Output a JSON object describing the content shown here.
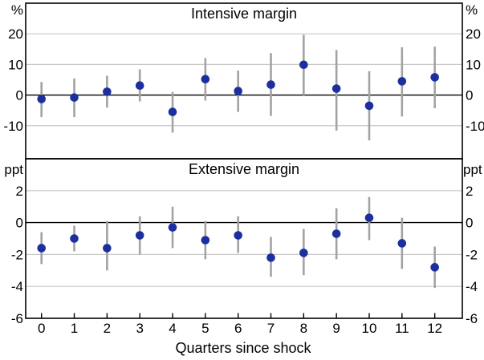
{
  "figure": {
    "xlabel": "Quarters since shock",
    "x_tick_labels": [
      "0",
      "1",
      "2",
      "3",
      "4",
      "5",
      "6",
      "7",
      "8",
      "9",
      "10",
      "11",
      "12"
    ]
  },
  "chart_data": [
    {
      "type": "scatter",
      "title": "Intensive margin",
      "unit_label": "%",
      "x": [
        0,
        1,
        2,
        3,
        4,
        5,
        6,
        7,
        8,
        9,
        10,
        11,
        12
      ],
      "means": [
        -1.3,
        -0.8,
        1.1,
        3.1,
        -5.5,
        5.2,
        1.3,
        3.4,
        9.9,
        2.1,
        -3.5,
        4.5,
        5.8
      ],
      "ci_low": [
        -7.2,
        -7.2,
        -4.1,
        -2.1,
        -12.3,
        -1.8,
        -5.5,
        -6.8,
        0.0,
        -11.6,
        -14.8,
        -7.0,
        -4.3
      ],
      "ci_high": [
        4.3,
        5.4,
        6.3,
        8.4,
        1.0,
        12.1,
        8.0,
        13.7,
        19.7,
        14.7,
        7.8,
        15.6,
        15.8
      ],
      "yticks": [
        20,
        10,
        0,
        -10
      ],
      "ylim": [
        -20.8,
        30
      ],
      "grid": true,
      "zero_line": true,
      "legend": "none"
    },
    {
      "type": "scatter",
      "title": "Extensive margin",
      "unit_label": "ppt",
      "x": [
        0,
        1,
        2,
        3,
        4,
        5,
        6,
        7,
        8,
        9,
        10,
        11,
        12
      ],
      "means": [
        -1.6,
        -1.0,
        -1.6,
        -0.8,
        -0.3,
        -1.1,
        -0.8,
        -2.2,
        -1.9,
        -0.7,
        0.3,
        -1.3,
        -2.8
      ],
      "ci_low": [
        -2.6,
        -1.8,
        -3.0,
        -2.0,
        -1.6,
        -2.3,
        -1.9,
        -3.4,
        -3.3,
        -2.3,
        -1.1,
        -2.9,
        -4.1
      ],
      "ci_high": [
        -0.6,
        -0.2,
        0.1,
        0.4,
        1.0,
        0.1,
        0.4,
        -0.9,
        -0.4,
        0.9,
        1.6,
        0.3,
        -1.5
      ],
      "yticks": [
        2,
        0,
        -2,
        -4,
        -6
      ],
      "ylim": [
        -6,
        4
      ],
      "grid": true,
      "zero_line": true,
      "legend": "none"
    }
  ],
  "colors": {
    "dot": "#1c2f9e",
    "error_bar": "#a3a3a3",
    "gridline": "#c8c8c8",
    "axis": "#000000",
    "background": "#ffffff"
  }
}
